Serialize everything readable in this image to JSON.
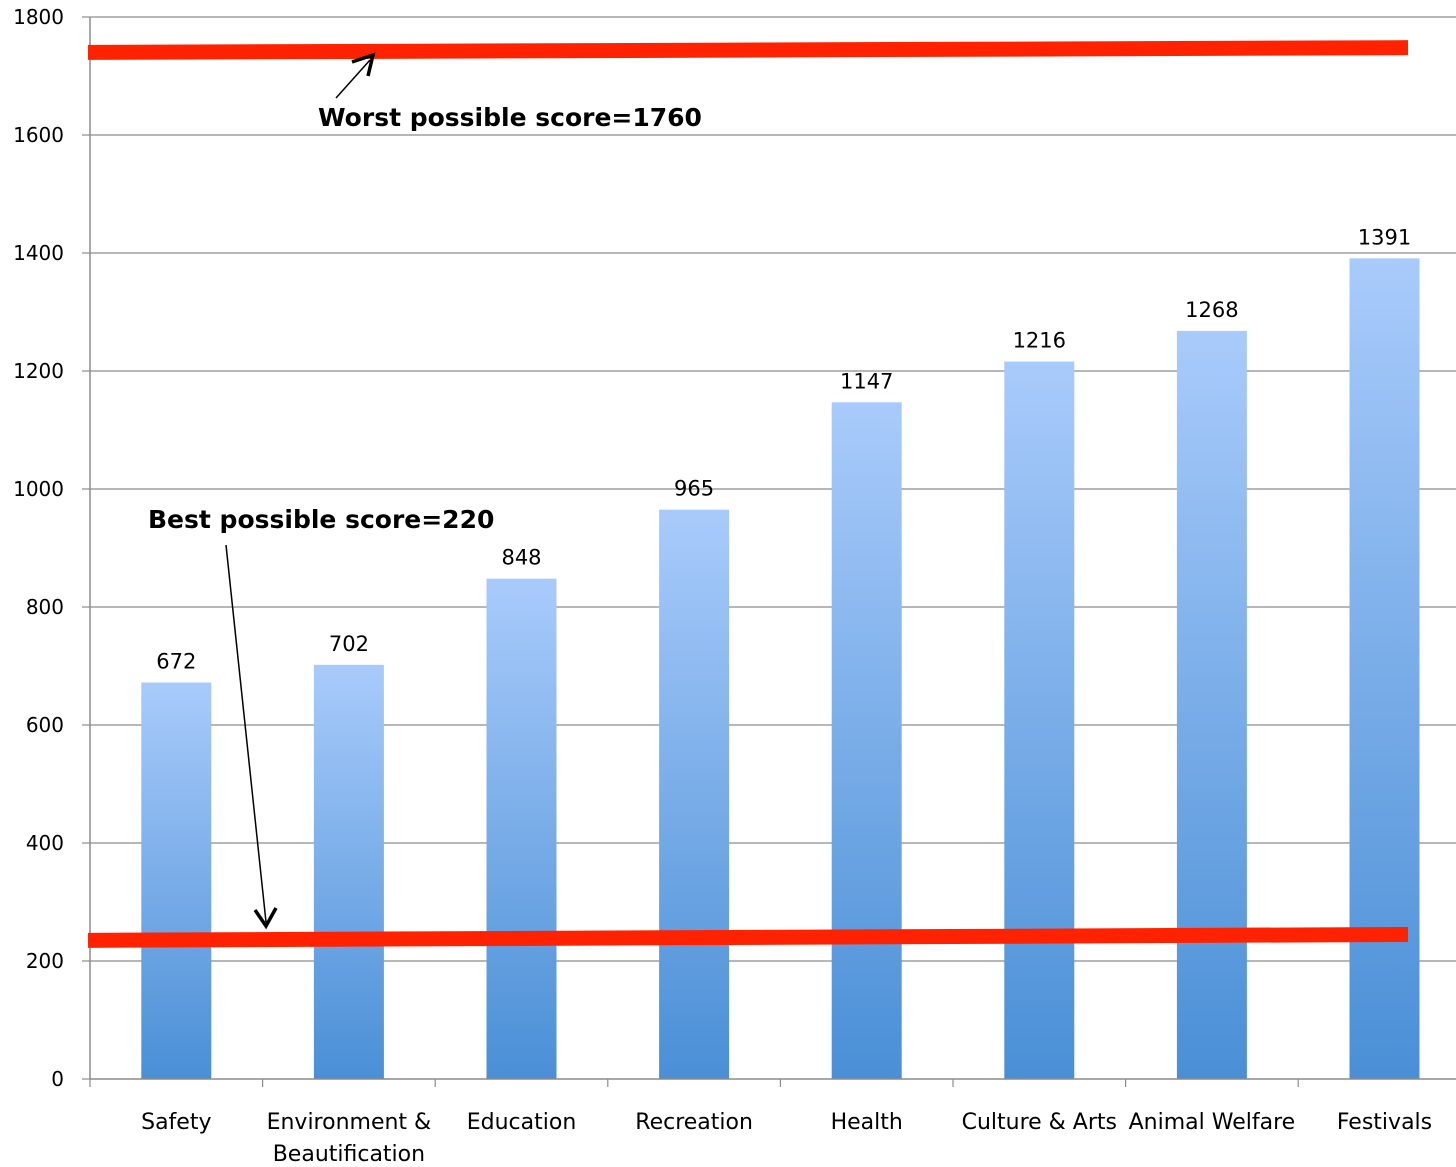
{
  "chart_data": {
    "type": "bar",
    "title": "",
    "xlabel": "",
    "ylabel": "",
    "categories": [
      "Safety",
      "Environment & Beautification",
      "Education",
      "Recreation",
      "Health",
      "Culture & Arts",
      "Animal Welfare",
      "Festivals"
    ],
    "category_lines": [
      [
        "Safety"
      ],
      [
        "Environment &",
        "Beautification"
      ],
      [
        "Education"
      ],
      [
        "Recreation"
      ],
      [
        "Health"
      ],
      [
        "Culture & Arts"
      ],
      [
        "Animal Welfare"
      ],
      [
        "Festivals"
      ]
    ],
    "values": [
      672,
      702,
      848,
      965,
      1147,
      1216,
      1268,
      1391
    ],
    "value_labels": [
      "672",
      "702",
      "848",
      "965",
      "1147",
      "1216",
      "1268",
      "1391"
    ],
    "ylim": [
      0,
      1800
    ],
    "yticks": [
      0,
      200,
      400,
      600,
      800,
      1000,
      1200,
      1400,
      1600,
      1800
    ],
    "grid": true,
    "legend": "none",
    "bar_colors": {
      "top": "#a9cbfb",
      "bottom": "#4a8fd6"
    },
    "reference_lines": [
      {
        "label": "Worst possible score=1760",
        "y_start": 1740,
        "y_end": 1748,
        "color": "#ff2200"
      },
      {
        "label": "Best possible score=220",
        "y_start": 235,
        "y_end": 245,
        "color": "#ff2200"
      }
    ]
  }
}
